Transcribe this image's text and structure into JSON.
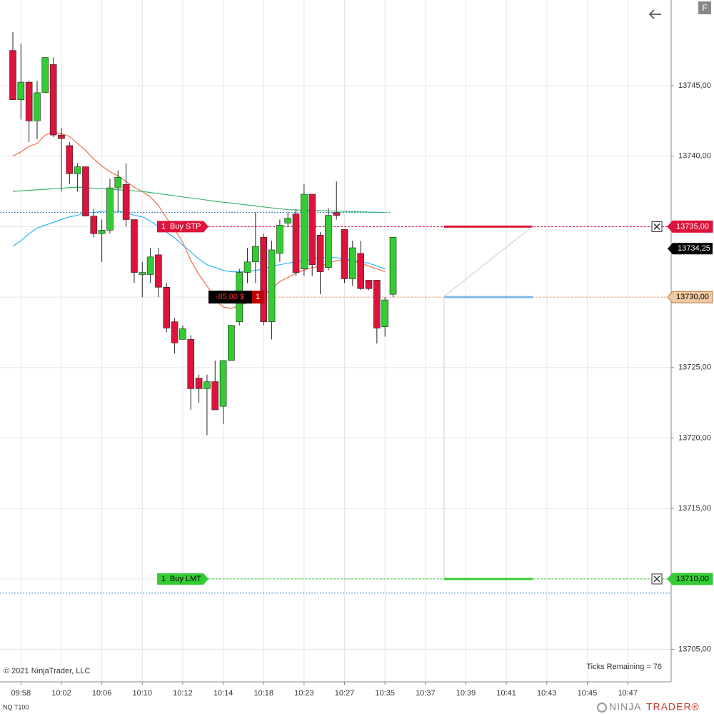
{
  "chart_data": {
    "type": "candlestick",
    "instrument": "NQ T100",
    "copyright": "© 2021 NinjaTrader, LLC",
    "ticks_remaining": "Ticks Remaining = 76",
    "brand": {
      "first": "NINJA",
      "second": "TRADER®"
    },
    "button": "F",
    "ylim": [
      13702.7,
      13751.08
    ],
    "yticks": [
      {
        "value": 13705,
        "label": "13705,00"
      },
      {
        "value": 13710,
        "label": "13710,00"
      },
      {
        "value": 13715,
        "label": "13715,00"
      },
      {
        "value": 13720,
        "label": "13720,00"
      },
      {
        "value": 13725,
        "label": "13725,00"
      },
      {
        "value": 13730,
        "label": "13730,00"
      },
      {
        "value": 13735,
        "label": "13735,00"
      },
      {
        "value": 13740,
        "label": "13740,00"
      },
      {
        "value": 13745,
        "label": "13745,00"
      }
    ],
    "grid": true,
    "time_labels": [
      "09:58",
      "10:02",
      "10:06",
      "10:10",
      "10:12",
      "10:14",
      "10:18",
      "10:23",
      "10:27",
      "10:35",
      "10:37",
      "10:39",
      "10:41",
      "10:43",
      "10:45",
      "10:47"
    ],
    "up_color": "#33cc33",
    "down_color": "#dc143c",
    "open": [
      13747.5,
      13744,
      13745.25,
      13742.5,
      13744.5,
      13746.5,
      13741.5,
      13740.75,
      13738.75,
      13739.25,
      13735.75,
      13734.5,
      13734.75,
      13737.75,
      13738,
      13735.5,
      13731.6,
      13731.6,
      13733,
      13730.7,
      13728.25,
      13727,
      13727,
      13724.25,
      13723.5,
      13724,
      13722.25,
      13725.5,
      13728.25,
      13731.75,
      13732.5,
      13734.25,
      13728.25,
      13733.1,
      13735.25,
      13735.9,
      13732,
      13737.3,
      13734.4,
      13732.1,
      13736,
      13734.8,
      13731.3,
      13733.1,
      13731.2,
      13731.2,
      13727.9,
      13730.2
    ],
    "high": [
      13748.8,
      13748,
      13745.35,
      13745.35,
      13747,
      13747,
      13742,
      13741,
      13739.5,
      13739.25,
      13736.25,
      13735.5,
      13738.4,
      13739,
      13739.5,
      13735.5,
      13732.5,
      13733.5,
      13733.5,
      13731,
      13728.5,
      13728,
      13727.3,
      13724.5,
      13724.5,
      13725.5,
      13725.5,
      13728,
      13732,
      13733.5,
      13736,
      13734.5,
      13734,
      13735.5,
      13736,
      13736.25,
      13738,
      13737.3,
      13734.6,
      13736.3,
      13738.2,
      13734.8,
      13734,
      13734,
      13731.2,
      13731.2,
      13730,
      13734.25
    ],
    "low": [
      13744,
      13742.6,
      13741,
      13741.2,
      13744.5,
      13741.35,
      13737.5,
      13738,
      13737.5,
      13735.75,
      13734.25,
      13732.5,
      13734.5,
      13736,
      13735,
      13731,
      13730,
      13731,
      13730,
      13727.5,
      13726,
      13727,
      13722,
      13722.5,
      13720.2,
      13722,
      13721,
      13725.5,
      13728,
      13731,
      13731,
      13728,
      13727,
      13732.5,
      13735,
      13731.5,
      13731.5,
      13731.5,
      13730.2,
      13731.9,
      13735.5,
      13731,
      13730.8,
      13730.5,
      13730.5,
      13726.7,
      13727.2,
      13730
    ],
    "close": [
      13744,
      13745.25,
      13742.5,
      13744.5,
      13747,
      13741.5,
      13741.25,
      13738.75,
      13739.25,
      13735.75,
      13734.5,
      13734.75,
      13737.75,
      13738.5,
      13735.5,
      13731.75,
      13731.75,
      13732.85,
      13730.7,
      13727.8,
      13726.75,
      13727.75,
      13723.5,
      13723.5,
      13724,
      13722,
      13725.5,
      13728,
      13731.75,
      13732.5,
      13733.6,
      13728.25,
      13733.35,
      13735.1,
      13735.6,
      13731.75,
      13737.3,
      13732.3,
      13731.8,
      13735.8,
      13735.8,
      13731.3,
      13733.5,
      13730.6,
      13730.6,
      13727.8,
      13729.8,
      13734.25
    ],
    "indicators": [
      {
        "color": "#f26b50",
        "values": [
          13740.0,
          13740.3,
          13740.7,
          13740.9,
          13741.5,
          13741.7,
          13741.6,
          13741.4,
          13740.9,
          13740.4,
          13739.8,
          13739.3,
          13738.9,
          13738.6,
          13738.2,
          13737.8,
          13737.5,
          13737.1,
          13736.5,
          13735.6,
          13734.8,
          13733.9,
          13732.6,
          13731.6,
          13730.8,
          13729.8,
          13729.3,
          13729.2,
          13729.4,
          13729.6,
          13729.8,
          13730.1,
          13730.6,
          13731.1,
          13731.4,
          13731.7,
          13731.9,
          13732.1,
          13732.2,
          13732.4,
          13732.6,
          13732.6,
          13732.6,
          13732.4,
          13732.2,
          13732.0,
          13731.8,
          null
        ]
      },
      {
        "color": "#3cb371",
        "values": [
          13737.5,
          13737.54,
          13737.58,
          13737.61,
          13737.65,
          13737.69,
          13737.72,
          13737.76,
          13737.8,
          13737.76,
          13737.72,
          13737.69,
          13737.65,
          13737.61,
          13737.58,
          13737.54,
          13737.5,
          13737.42,
          13737.34,
          13737.27,
          13737.19,
          13737.11,
          13737.03,
          13736.96,
          13736.88,
          13736.8,
          13736.73,
          13736.67,
          13736.6,
          13736.53,
          13736.47,
          13736.4,
          13736.33,
          13736.27,
          13736.2,
          13736.18,
          13736.17,
          13736.15,
          13736.13,
          13736.12,
          13736.1,
          13736.08,
          13736.07,
          13736.05,
          13736.03,
          13736.02,
          13736.0,
          null
        ]
      },
      {
        "color": "#29b6f6",
        "values": [
          13733.6,
          13734.0,
          13734.5,
          13734.9,
          13735.1,
          13735.3,
          13735.5,
          13735.7,
          13735.8,
          13736.0,
          13736.0,
          13736.1,
          13736.1,
          13736.1,
          13736.0,
          13735.8,
          13735.7,
          13735.4,
          13735.0,
          13734.6,
          13734.2,
          13733.7,
          13733.2,
          13732.7,
          13732.3,
          13732.1,
          13731.9,
          13731.8,
          13731.8,
          13731.8,
          13731.9,
          13732.0,
          13732.2,
          13732.3,
          13732.4,
          13732.5,
          13732.6,
          13732.7,
          13732.8,
          13732.8,
          13732.8,
          13732.7,
          13732.6,
          13732.5,
          13732.4,
          13732.2,
          13732.0,
          null
        ]
      }
    ],
    "hlines": [
      13736,
      13709
    ],
    "hline_color": "#1f77b4",
    "orders": [
      {
        "qty": "1",
        "name": "Buy STP",
        "color": "#dc143c",
        "price": {
          "value": 13735,
          "label": "13735,00"
        }
      },
      {
        "qty": "1",
        "name": "Buy LMT",
        "color": "#33cc33",
        "price": {
          "value": 13710,
          "label": "13710,00"
        }
      }
    ],
    "position": {
      "pnl": "-85,00 $",
      "qty": "1",
      "price": {
        "value": 13730,
        "label": "13730,00"
      }
    },
    "last_price": {
      "value": 13734.25,
      "label": "13734,25"
    }
  }
}
